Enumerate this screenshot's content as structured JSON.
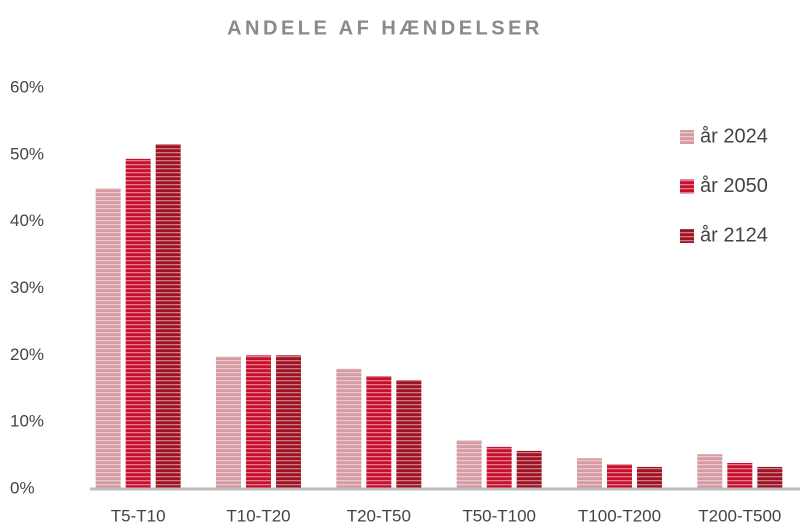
{
  "chart_data": {
    "type": "bar",
    "title": "ANDELE AF HÆNDELSER",
    "categories": [
      "T5-T10",
      "T10-T20",
      "T20-T50",
      "T50-T100",
      "T100-T200",
      "T200-T500"
    ],
    "series": [
      {
        "name": "år 2024",
        "color": "#d59aa2",
        "values": [
          45,
          19.8,
          18,
          7.3,
          4.6,
          5.2
        ]
      },
      {
        "name": "år 2050",
        "color": "#c8102e",
        "values": [
          49.4,
          20,
          16.9,
          6.3,
          3.7,
          3.9
        ]
      },
      {
        "name": "år 2124",
        "color": "#9e1224",
        "values": [
          51.6,
          20,
          16.3,
          5.7,
          3.3,
          3.3
        ]
      }
    ],
    "ylim": [
      0,
      60
    ],
    "yticks": [
      {
        "value": 0,
        "label": "0%"
      },
      {
        "value": 10,
        "label": "10%"
      },
      {
        "value": 20,
        "label": "20%"
      },
      {
        "value": 30,
        "label": "30%"
      },
      {
        "value": 40,
        "label": "40%"
      },
      {
        "value": 50,
        "label": "50%"
      },
      {
        "value": 60,
        "label": "60%"
      }
    ],
    "grid": false,
    "legend": "right"
  }
}
